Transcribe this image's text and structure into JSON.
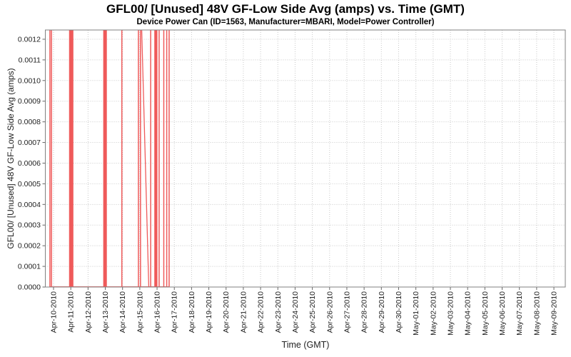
{
  "chart_data": {
    "type": "line",
    "title": "GFL00/ [Unused] 48V GF-Low Side Avg (amps) vs. Time (GMT)",
    "subtitle": "Device Power Can (ID=1563, Manufacturer=MBARI, Model=Power Controller)",
    "xlabel": "Time (GMT)",
    "ylabel": "GFL00/ [Unused] 48V GF-Low Side Avg (amps)",
    "legend": "none",
    "grid": true,
    "ylim": [
      0,
      0.0012448
    ],
    "y_tick_step": 0.0001,
    "y_tick_labels": [
      "0.0000",
      "0.0001",
      "0.0002",
      "0.0003",
      "0.0004",
      "0.0005",
      "0.0006",
      "0.0007",
      "0.0008",
      "0.0009",
      "0.0010",
      "0.0011",
      "0.0012"
    ],
    "xlim_days": [
      -0.476,
      29.66
    ],
    "x_tick_labels": [
      "Apr-10-2010",
      "Apr-11-2010",
      "Apr-12-2010",
      "Apr-13-2010",
      "Apr-14-2010",
      "Apr-15-2010",
      "Apr-16-2010",
      "Apr-17-2010",
      "Apr-18-2010",
      "Apr-19-2010",
      "Apr-20-2010",
      "Apr-21-2010",
      "Apr-22-2010",
      "Apr-23-2010",
      "Apr-24-2010",
      "Apr-25-2010",
      "Apr-26-2010",
      "Apr-27-2010",
      "Apr-28-2010",
      "Apr-29-2010",
      "Apr-30-2010",
      "May-01-2010",
      "May-02-2010",
      "May-03-2010",
      "May-04-2010",
      "May-05-2010",
      "May-06-2010",
      "May-07-2010",
      "May-08-2010",
      "May-09-2010"
    ],
    "series": [
      {
        "name": "48V GF-Low Side Avg",
        "color": "#ef5a5a",
        "note": "values oscillate between 0 amps and > axis max (clipped at top); t = days after Apr-10-2010 00:00 GMT",
        "high_value_amps": 0.0013,
        "events": [
          {
            "type": "spike",
            "t": -0.21
          },
          {
            "type": "spike",
            "t": -0.12
          },
          {
            "type": "band",
            "t0": 0.9,
            "t1": 1.15
          },
          {
            "type": "band",
            "t0": 2.88,
            "t1": 3.09
          },
          {
            "type": "spike",
            "t": 3.96
          },
          {
            "type": "spike",
            "t": 4.92
          },
          {
            "type": "spike",
            "t": 5.04
          },
          {
            "type": "ramp",
            "t0": 5.11,
            "t1": 5.52
          },
          {
            "type": "spike",
            "t": 5.63
          },
          {
            "type": "band",
            "t0": 5.84,
            "t1": 6.02
          },
          {
            "type": "spike",
            "t": 6.12
          },
          {
            "type": "spike",
            "t": 6.39
          },
          {
            "type": "spike",
            "t": 6.56
          },
          {
            "type": "spike",
            "t": 6.7
          },
          {
            "type": "baseline",
            "t0": -0.21,
            "t1": 6.7,
            "value": 0
          }
        ]
      }
    ]
  },
  "colors": {
    "background": "#ffffff",
    "series_red": "#ef5a5a",
    "grid_line": "#c9c9c9",
    "plot_border": "#808080",
    "tick_mark": "#666666",
    "tick_text": "#222222",
    "title_text": "#000000"
  }
}
